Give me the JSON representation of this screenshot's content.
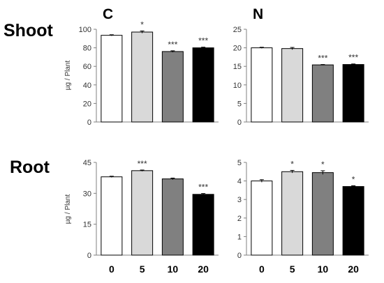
{
  "figure": {
    "column_labels": [
      "C",
      "N"
    ],
    "row_labels": [
      "Shoot",
      "Root"
    ],
    "ylabel": "µg / Plant",
    "categories": [
      "0",
      "5",
      "10",
      "20"
    ]
  },
  "colors": {
    "bars": [
      "#ffffff",
      "#d9d9d9",
      "#808080",
      "#000000"
    ],
    "stroke": "#000000"
  },
  "chart_data": [
    {
      "type": "bar",
      "panel": "Shoot-C",
      "title": "",
      "xlabel": "",
      "ylabel": "µg / Plant",
      "categories": [
        "0",
        "5",
        "10",
        "20"
      ],
      "values": [
        93.5,
        97.0,
        76.0,
        80.0
      ],
      "errors": [
        0.6,
        1.2,
        0.8,
        0.7
      ],
      "significance": [
        "",
        "*",
        "***",
        "***"
      ],
      "ylim": [
        0,
        100
      ],
      "yticks": [
        0,
        20,
        40,
        60,
        80,
        100
      ],
      "grid": false,
      "legend": "none"
    },
    {
      "type": "bar",
      "panel": "Shoot-N",
      "title": "",
      "xlabel": "",
      "ylabel": "",
      "categories": [
        "0",
        "5",
        "10",
        "20"
      ],
      "values": [
        20.0,
        19.8,
        15.4,
        15.5
      ],
      "errors": [
        0.15,
        0.3,
        0.1,
        0.15
      ],
      "significance": [
        "",
        "",
        "***",
        "***"
      ],
      "ylim": [
        0,
        25
      ],
      "yticks": [
        0,
        5,
        10,
        15,
        20,
        25
      ],
      "grid": false,
      "legend": "none"
    },
    {
      "type": "bar",
      "panel": "Root-C",
      "title": "",
      "xlabel": "",
      "ylabel": "µg / Plant",
      "categories": [
        "0",
        "5",
        "10",
        "20"
      ],
      "values": [
        38.0,
        41.0,
        37.0,
        29.5
      ],
      "errors": [
        0.3,
        0.3,
        0.4,
        0.4
      ],
      "significance": [
        "",
        "***",
        "",
        "***"
      ],
      "ylim": [
        0,
        45
      ],
      "yticks": [
        0,
        15,
        30,
        45
      ],
      "grid": false,
      "legend": "none"
    },
    {
      "type": "bar",
      "panel": "Root-N",
      "title": "",
      "xlabel": "",
      "ylabel": "",
      "categories": [
        "0",
        "5",
        "10",
        "20"
      ],
      "values": [
        4.0,
        4.5,
        4.45,
        3.7
      ],
      "errors": [
        0.07,
        0.07,
        0.1,
        0.04
      ],
      "significance": [
        "",
        "*",
        "*",
        "*"
      ],
      "ylim": [
        0,
        5
      ],
      "yticks": [
        0,
        1,
        2,
        3,
        4,
        5
      ],
      "grid": false,
      "legend": "none"
    }
  ]
}
